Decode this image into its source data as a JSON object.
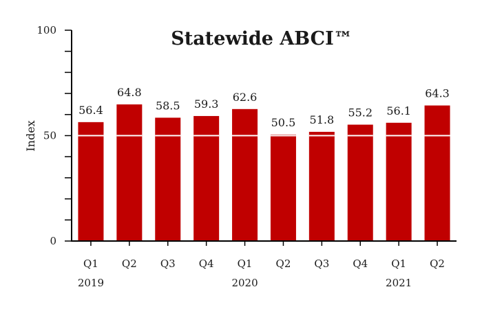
{
  "chart_data": {
    "type": "bar",
    "title": "Statewide ABCI™",
    "xlabel": "",
    "ylabel": "Index",
    "ylim": [
      0,
      100
    ],
    "yticks": [
      "0",
      "50",
      "100"
    ],
    "categories": [
      "Q1",
      "Q2",
      "Q3",
      "Q4",
      "Q1",
      "Q2",
      "Q3",
      "Q4",
      "Q1",
      "Q2"
    ],
    "years": [
      {
        "label": "2019",
        "index": 0
      },
      {
        "label": "2020",
        "index": 4
      },
      {
        "label": "2021",
        "index": 8
      }
    ],
    "values": [
      56.4,
      64.8,
      58.5,
      59.3,
      62.6,
      50.5,
      51.8,
      55.2,
      56.1,
      64.3
    ],
    "value_labels": [
      "56.4",
      "64.8",
      "58.5",
      "59.3",
      "62.6",
      "50.5",
      "51.8",
      "55.2",
      "56.1",
      "64.3"
    ],
    "reference_line": 50,
    "grid": false,
    "bar_color": "#c00000",
    "reference_line_color": "#ffffff"
  }
}
